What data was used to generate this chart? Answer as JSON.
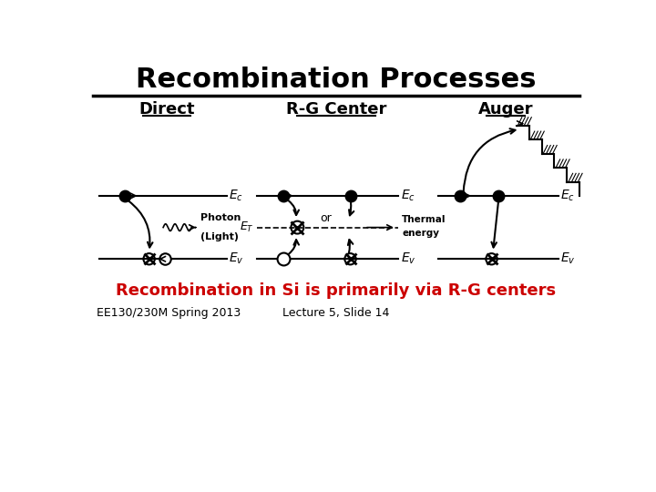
{
  "title": "Recombination Processes",
  "subtitle": "Recombination in Si is primarily via R-G centers",
  "subtitle_color": "#cc0000",
  "footer_left": "EE130/230M Spring 2013",
  "footer_right": "Lecture 5, Slide 14",
  "col_labels": [
    "Direct",
    "R-G Center",
    "Auger"
  ],
  "bg_color": "#ffffff",
  "title_fontsize": 22,
  "label_fontsize": 13,
  "subtitle_fontsize": 13,
  "footer_fontsize": 9
}
